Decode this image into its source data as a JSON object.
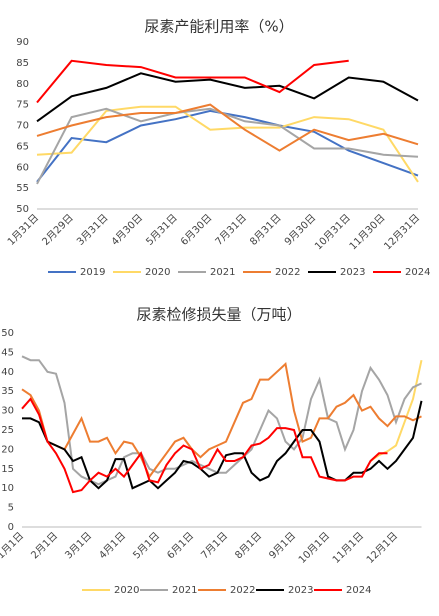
{
  "chart_data": [
    {
      "type": "line",
      "title": "尿素产能利用率（%）",
      "categories": [
        "1月31日",
        "2月29日",
        "3月31日",
        "4月30日",
        "5月31日",
        "6月30日",
        "7月31日",
        "8月31日",
        "9月30日",
        "10月31日",
        "11月30日",
        "12月31日"
      ],
      "ylim": [
        50,
        90
      ],
      "yticks": [
        50,
        55,
        60,
        65,
        70,
        75,
        80,
        85,
        90
      ],
      "grid": false,
      "legend": "bottom",
      "series": [
        {
          "name": "2019",
          "color": "#4472c4",
          "values": [
            56.5,
            67,
            66,
            70,
            71.5,
            73.5,
            72,
            70,
            68.5,
            64,
            61,
            58
          ]
        },
        {
          "name": "2020",
          "color": "#ffd966",
          "values": [
            63,
            63.5,
            73.5,
            74.5,
            74.5,
            69,
            69.5,
            69.5,
            72,
            71.5,
            69,
            56.5
          ]
        },
        {
          "name": "2021",
          "color": "#a5a5a5",
          "values": [
            56,
            72,
            74,
            71,
            73,
            74,
            71,
            70,
            64.5,
            64.5,
            63,
            62.5
          ]
        },
        {
          "name": "2022",
          "color": "#ed7d31",
          "values": [
            67.5,
            70,
            72,
            73,
            73,
            75,
            69,
            64,
            69,
            66.5,
            68,
            65.5
          ]
        },
        {
          "name": "2023",
          "color": "#000000",
          "values": [
            71,
            77,
            79,
            82.5,
            80.5,
            81,
            79,
            79.5,
            76.5,
            81.5,
            80.5,
            76
          ]
        },
        {
          "name": "2024",
          "color": "#ff0000",
          "values": [
            75.5,
            85.5,
            84.5,
            84,
            81.5,
            81.5,
            81.5,
            78,
            84.5,
            85.5,
            null,
            null
          ]
        }
      ]
    },
    {
      "type": "line",
      "title": "尿素检修损失量（万吨）",
      "categories": [
        "1月1日",
        null,
        null,
        null,
        "2月1日",
        null,
        null,
        null,
        "3月1日",
        null,
        null,
        null,
        "4月1日",
        null,
        null,
        null,
        "5月1日",
        null,
        null,
        null,
        "6月1日",
        null,
        null,
        null,
        "7月1日",
        null,
        null,
        null,
        "8月1日",
        null,
        null,
        null,
        "9月1日",
        null,
        null,
        null,
        "10月1日",
        null,
        null,
        null,
        "11月1日",
        null,
        null,
        null,
        "12月1日",
        null,
        null,
        null
      ],
      "ylim": [
        0,
        50
      ],
      "yticks": [
        0,
        5,
        10,
        15,
        20,
        25,
        30,
        35,
        40,
        45,
        50
      ],
      "grid": false,
      "legend": "bottom",
      "series": [
        {
          "name": "2020",
          "color": "#ffd966",
          "values": [
            null,
            null,
            null,
            null,
            null,
            null,
            null,
            null,
            null,
            null,
            null,
            null,
            null,
            null,
            null,
            null,
            null,
            null,
            null,
            null,
            null,
            null,
            null,
            null,
            null,
            null,
            null,
            null,
            null,
            null,
            null,
            null,
            null,
            null,
            null,
            null,
            null,
            null,
            null,
            null,
            null,
            17,
            18.5,
            19.5,
            21,
            27,
            33,
            43
          ]
        },
        {
          "name": "2021",
          "color": "#a5a5a5",
          "values": [
            44,
            43,
            43,
            40,
            39.5,
            32,
            15,
            13,
            12,
            11,
            12,
            13,
            18,
            19,
            19,
            15,
            14,
            15,
            15,
            16,
            17,
            16,
            15,
            14,
            14,
            16,
            18,
            20,
            25,
            30,
            28,
            22,
            20,
            23,
            33,
            38,
            28,
            27,
            20,
            25,
            35,
            41,
            38,
            34,
            27,
            33,
            36,
            37
          ]
        },
        {
          "name": "2022",
          "color": "#ed7d31",
          "values": [
            35.5,
            34,
            30,
            22,
            21,
            20,
            24,
            28,
            22,
            22,
            23,
            19,
            22,
            21.5,
            18,
            13,
            16,
            19,
            22,
            23,
            20,
            18,
            20,
            21,
            22,
            27,
            32,
            33,
            38,
            38,
            40,
            42,
            30,
            22,
            23,
            28,
            28,
            31,
            32,
            34,
            30,
            31,
            28,
            26,
            28.5,
            28.5,
            27.5,
            28.5
          ]
        },
        {
          "name": "2023",
          "color": "#000000",
          "values": [
            28,
            28,
            27,
            22,
            21,
            20,
            17,
            18,
            12,
            10,
            12,
            17.5,
            17.5,
            10,
            11,
            12,
            10,
            12,
            14,
            17,
            16.5,
            15,
            13,
            14,
            18.5,
            19,
            19,
            14,
            12,
            13,
            17,
            19,
            22,
            25,
            25,
            22,
            13,
            12,
            12,
            14,
            14,
            15,
            17,
            15,
            17,
            20,
            23,
            32.5
          ]
        },
        {
          "name": "2024",
          "color": "#ff0000",
          "values": [
            30.5,
            33,
            29,
            22,
            19,
            15,
            9,
            9.5,
            12,
            14,
            13,
            15,
            13,
            16,
            19,
            12,
            11.5,
            16,
            19,
            21,
            20,
            15,
            16,
            20,
            17,
            17,
            18,
            21,
            21.5,
            23,
            25.5,
            25.5,
            25,
            18,
            18,
            13,
            12.5,
            12,
            12,
            13,
            13,
            17,
            19,
            19,
            null,
            null,
            null,
            null
          ]
        }
      ]
    }
  ]
}
